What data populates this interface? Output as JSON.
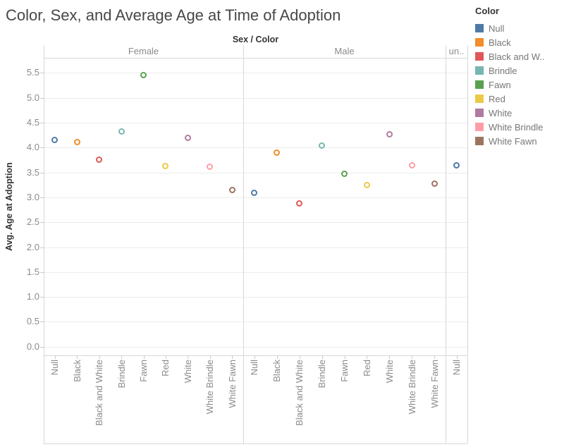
{
  "title": "Color, Sex, and Average Age at Time of Adoption",
  "axis_header": "Sex / Color",
  "y_axis": {
    "label": "Avg. Age at Adoption",
    "tick_labels": [
      "0.0",
      "0.5",
      "1.0",
      "1.5",
      "2.0",
      "2.5",
      "3.0",
      "3.5",
      "4.0",
      "4.5",
      "5.0",
      "5.5"
    ]
  },
  "legend": {
    "title": "Color",
    "items": [
      {
        "label": "Null",
        "color": "#4E79A7"
      },
      {
        "label": "Black",
        "color": "#F28E2B"
      },
      {
        "label": "Black and W..",
        "color": "#E15759"
      },
      {
        "label": "Brindle",
        "color": "#76B7B2"
      },
      {
        "label": "Fawn",
        "color": "#59A14F"
      },
      {
        "label": "Red",
        "color": "#EDC948"
      },
      {
        "label": "White",
        "color": "#B07AA1"
      },
      {
        "label": "White Brindle",
        "color": "#FF9DA7"
      },
      {
        "label": "White Fawn",
        "color": "#9C755F"
      }
    ]
  },
  "chart_data": {
    "type": "scatter",
    "title": "Color, Sex, and Average Age at Time of Adoption",
    "xlabel": "Sex / Color",
    "ylabel": "Avg. Age at Adoption",
    "ylim": [
      0,
      5.5
    ],
    "grid": true,
    "legend_position": "right",
    "marker": "open-circle",
    "colors": {
      "Null": "#4E79A7",
      "Black": "#F28E2B",
      "Black and White": "#E15759",
      "Brindle": "#76B7B2",
      "Fawn": "#59A14F",
      "Red": "#EDC948",
      "White": "#B07AA1",
      "White Brindle": "#FF9DA7",
      "White Fawn": "#9C755F"
    },
    "panels": [
      {
        "sex": "Female",
        "categories": [
          "Null",
          "Black",
          "Black and White",
          "Brindle",
          "Fawn",
          "Red",
          "White",
          "White Brindle",
          "White Fawn"
        ],
        "values": [
          4.16,
          4.11,
          3.75,
          4.32,
          5.45,
          3.63,
          4.19,
          3.61,
          3.15
        ]
      },
      {
        "sex": "Male",
        "categories": [
          "Null",
          "Black",
          "Black and White",
          "Brindle",
          "Fawn",
          "Red",
          "White",
          "White Brindle",
          "White Fawn"
        ],
        "values": [
          3.09,
          3.9,
          2.88,
          4.04,
          3.48,
          3.25,
          4.26,
          3.64,
          3.28
        ]
      },
      {
        "sex": "un..",
        "categories": [
          "Null"
        ],
        "values": [
          3.64
        ]
      }
    ]
  }
}
